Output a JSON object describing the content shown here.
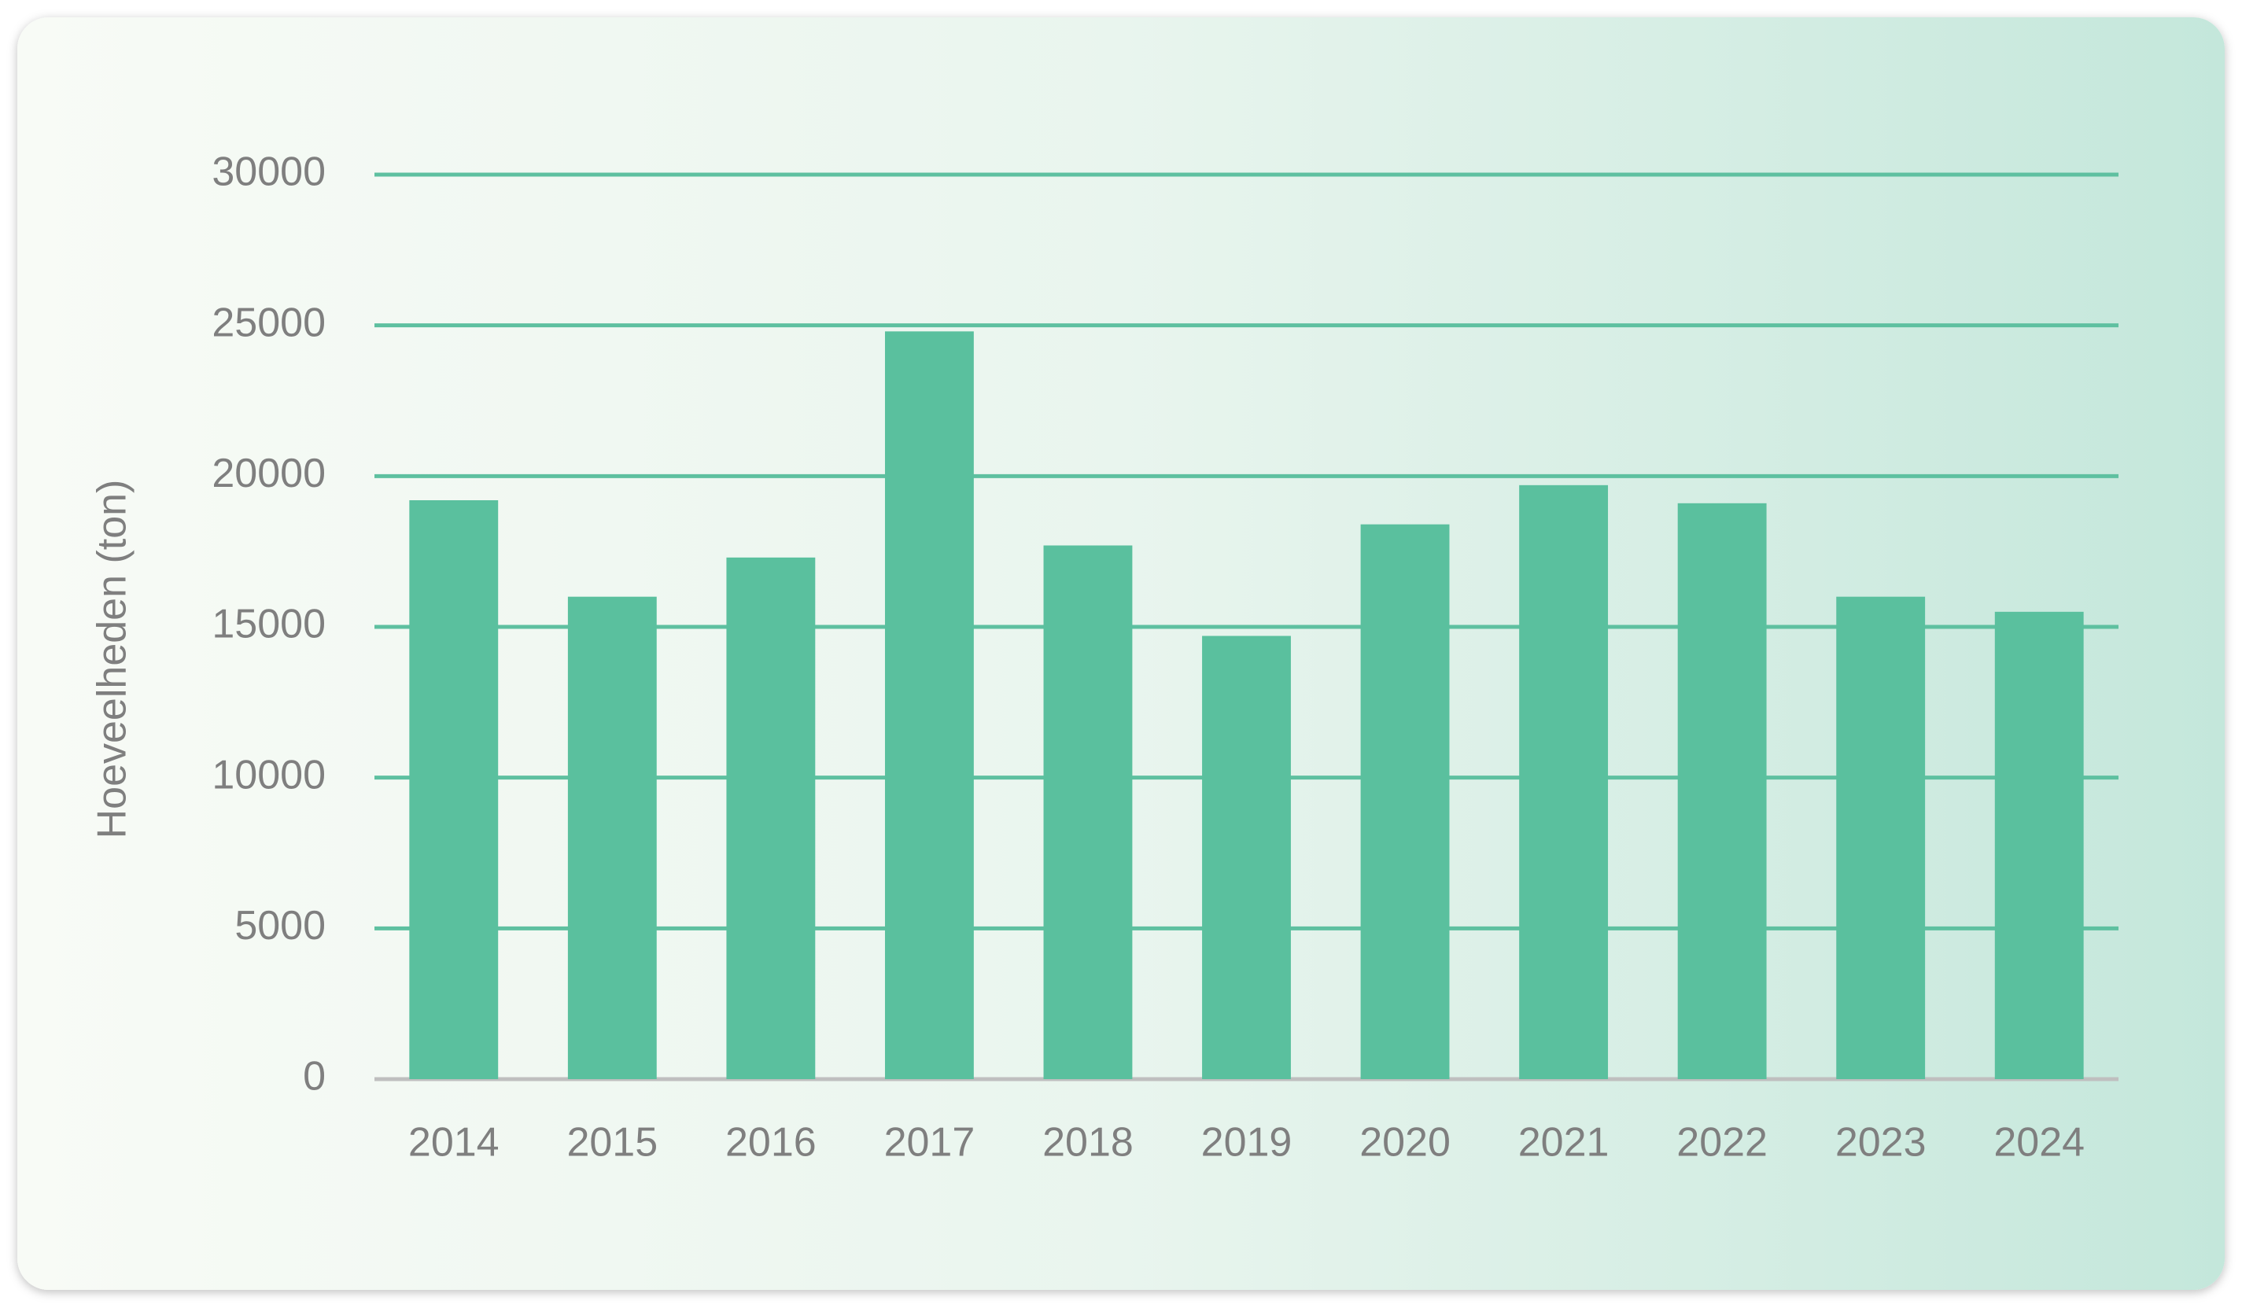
{
  "chart_data": {
    "type": "bar",
    "y_label": "Hoeveelheden (ton)",
    "categories": [
      "2014",
      "2015",
      "2016",
      "2017",
      "2018",
      "2019",
      "2020",
      "2021",
      "2022",
      "2023",
      "2024"
    ],
    "values": [
      19200,
      16000,
      17300,
      24800,
      17700,
      14700,
      18400,
      19700,
      19100,
      16000,
      15500
    ],
    "color": "#5ac09e",
    "ylim": [
      0,
      30000
    ],
    "yticks": [
      0,
      5000,
      10000,
      15000,
      20000,
      25000,
      30000
    ],
    "grid": true
  }
}
